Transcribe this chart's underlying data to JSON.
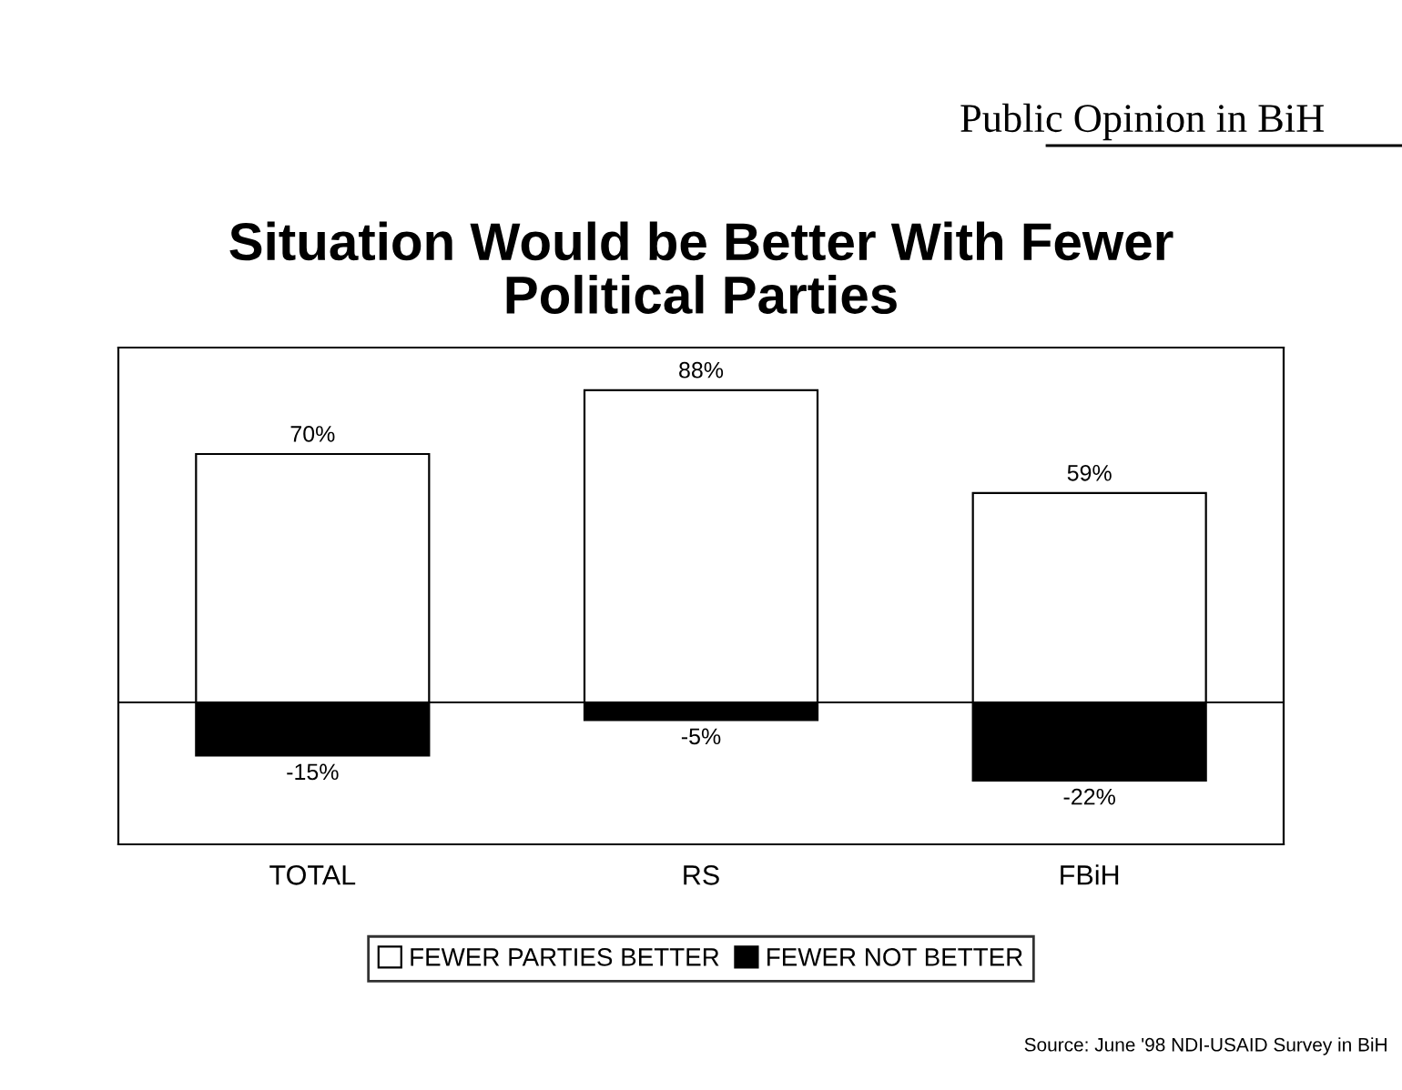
{
  "chart_data": {
    "type": "bar",
    "title": "Situation Would be Better With Fewer\nPolitical Parties",
    "subtitle": "Public Opinion in BiH",
    "categories": [
      "TOTAL",
      "RS",
      "FBiH"
    ],
    "series": [
      {
        "name": "FEWER PARTIES BETTER",
        "color": "#ffffff",
        "values": [
          70,
          88,
          59
        ],
        "value_labels": [
          "70%",
          "88%",
          "59%"
        ]
      },
      {
        "name": "FEWER NOT BETTER",
        "color": "#000000",
        "values": [
          -15,
          -5,
          -22
        ],
        "value_labels": [
          "-15%",
          "-5%",
          "-22%"
        ]
      }
    ],
    "stacked": true,
    "ylim": [
      -40,
      100
    ],
    "tick_labels": "x",
    "legend": "bottom",
    "grid": false,
    "annotations": [
      "Source: June '98 NDI-USAID Survey in BiH"
    ]
  }
}
